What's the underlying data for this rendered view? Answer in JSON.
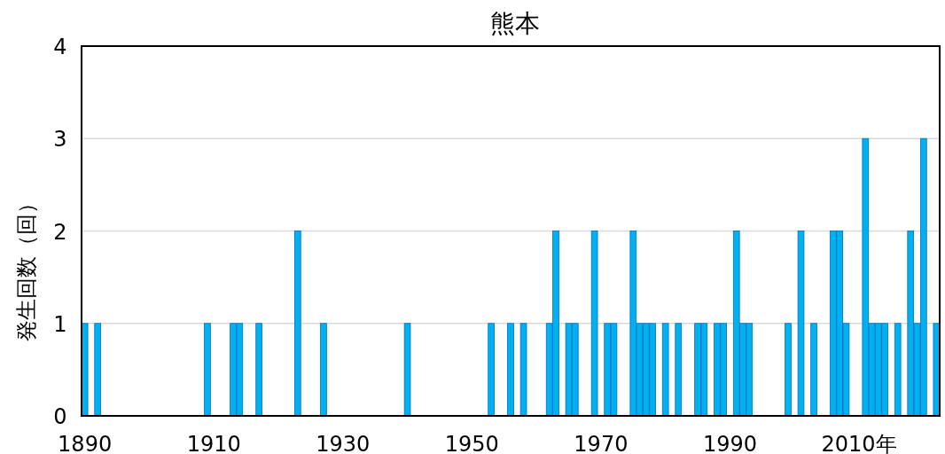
{
  "chart_data": {
    "type": "bar",
    "title": "熊本",
    "ylabel": "発生回数（回）",
    "categories": [
      "1890",
      null,
      null,
      null,
      null,
      null,
      null,
      null,
      null,
      null,
      null,
      null,
      null,
      null,
      null,
      null,
      null,
      null,
      null,
      null,
      "1910",
      null,
      null,
      null,
      null,
      null,
      null,
      null,
      null,
      null,
      null,
      null,
      null,
      null,
      null,
      null,
      null,
      null,
      null,
      null,
      "1930",
      null,
      null,
      null,
      null,
      null,
      null,
      null,
      null,
      null,
      null,
      null,
      null,
      null,
      null,
      null,
      null,
      null,
      null,
      null,
      "1950",
      null,
      null,
      null,
      null,
      null,
      null,
      null,
      null,
      null,
      null,
      null,
      null,
      null,
      null,
      null,
      null,
      null,
      null,
      null,
      "1970",
      null,
      null,
      null,
      null,
      null,
      null,
      null,
      null,
      null,
      null,
      null,
      null,
      null,
      null,
      null,
      null,
      null,
      null,
      null,
      "1990",
      null,
      null,
      null,
      null,
      null,
      null,
      null,
      null,
      null,
      null,
      null,
      null,
      null,
      null,
      null,
      null,
      null,
      null,
      null,
      "2010年",
      null,
      null,
      null,
      null,
      null,
      null,
      null,
      null,
      null,
      null,
      null,
      null
    ],
    "values": [
      1,
      0,
      1,
      0,
      0,
      0,
      0,
      0,
      0,
      0,
      0,
      0,
      0,
      0,
      0,
      0,
      0,
      0,
      0,
      1,
      0,
      0,
      0,
      1,
      1,
      0,
      0,
      1,
      0,
      0,
      0,
      0,
      0,
      2,
      0,
      0,
      0,
      1,
      0,
      0,
      0,
      0,
      0,
      0,
      0,
      0,
      0,
      0,
      0,
      0,
      1,
      0,
      0,
      0,
      0,
      0,
      0,
      0,
      0,
      0,
      0,
      0,
      0,
      1,
      0,
      0,
      1,
      0,
      1,
      0,
      0,
      0,
      1,
      2,
      0,
      1,
      1,
      0,
      0,
      2,
      0,
      1,
      1,
      0,
      0,
      2,
      1,
      1,
      1,
      0,
      1,
      0,
      1,
      0,
      0,
      1,
      1,
      0,
      1,
      1,
      0,
      2,
      1,
      1,
      0,
      0,
      0,
      0,
      0,
      1,
      0,
      2,
      0,
      1,
      0,
      0,
      2,
      2,
      1,
      0,
      0,
      3,
      1,
      1,
      1,
      0,
      1,
      0,
      2,
      1,
      3,
      0,
      1
    ],
    "color": "#00b0f0",
    "ylim": [
      0,
      4
    ],
    "yticks": [
      0,
      1,
      2,
      3,
      4
    ],
    "grid": "y"
  }
}
